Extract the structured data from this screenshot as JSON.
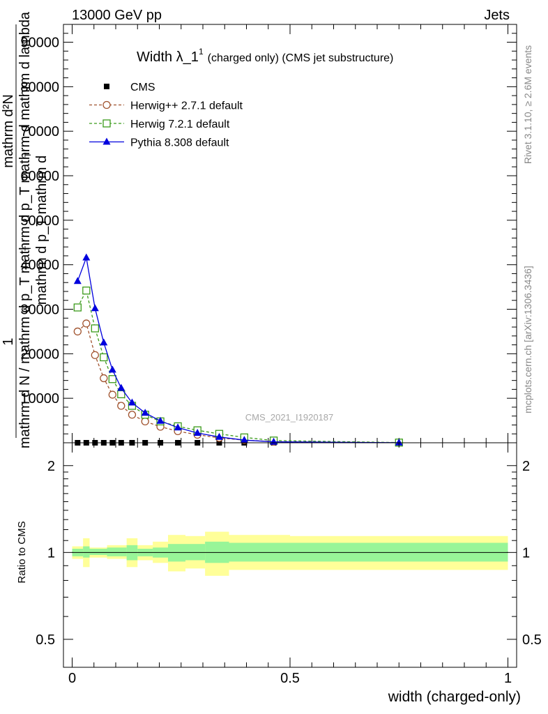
{
  "header": {
    "left": "13000 GeV pp",
    "right": "Jets"
  },
  "title": {
    "main": "Width λ_1",
    "sup": "1",
    "rest": "(charged only) (CMS jet substructure)"
  },
  "watermark": "CMS_2021_I1920187",
  "side_text": {
    "rivet": "Rivet 3.1.10, ≥ 2.6M events",
    "mcplots": "mcplots.cern.ch [arXiv:1306.3436]"
  },
  "y_label_main": {
    "line1": "1",
    "line2": "mathrm d N / mathrm d p_T mathrm d p_T mathrm d mathrm d lambda",
    "numer": "mathrm d²N",
    "denom_a": "mathrm d p_T mathrm d",
    "sub_a": "T",
    "sub_b": "T"
  },
  "y_label_ratio": "Ratio to CMS",
  "x_label": "width (charged-only)",
  "legend": [
    {
      "label": "CMS",
      "color": "#000000",
      "marker": "square-filled",
      "dash": false
    },
    {
      "label": "Herwig++ 2.7.1 default",
      "color": "#a0522d",
      "marker": "circle-open",
      "dash": true
    },
    {
      "label": "Herwig 7.2.1 default",
      "color": "#3a9a1a",
      "marker": "square-open",
      "dash": true
    },
    {
      "label": "Pythia 8.308 default",
      "color": "#0000dd",
      "marker": "triangle-filled",
      "dash": false
    }
  ],
  "chart_data": [
    {
      "type": "line",
      "panel": "main",
      "xlim": [
        -0.02,
        1.02
      ],
      "ylim": [
        0,
        94000
      ],
      "y_ticks": [
        10000,
        20000,
        30000,
        40000,
        50000,
        60000,
        70000,
        80000,
        90000
      ],
      "y_tick_labels": [
        "10000",
        "20000",
        "30000",
        "40000",
        "50000",
        "60000",
        "70000",
        "80000",
        "90000"
      ],
      "x_ticks": [
        0,
        0.5,
        1
      ],
      "x_tick_labels": [
        "0",
        "0.5",
        "1"
      ],
      "x": [
        0.0125,
        0.0325,
        0.0525,
        0.0725,
        0.0925,
        0.1125,
        0.1375,
        0.1675,
        0.2025,
        0.2425,
        0.2875,
        0.3375,
        0.395,
        0.4625,
        0.75
      ],
      "series": [
        {
          "name": "CMS",
          "values": [
            0,
            0,
            0,
            0,
            0,
            0,
            0,
            0,
            0,
            0,
            0,
            0,
            0,
            0,
            0
          ]
        },
        {
          "name": "Herwig++ 2.7.1 default",
          "values": [
            25000,
            26800,
            19700,
            14500,
            10800,
            8300,
            6300,
            4800,
            3600,
            2600,
            1800,
            1100,
            600,
            250,
            20
          ]
        },
        {
          "name": "Herwig 7.2.1 default",
          "values": [
            30400,
            34200,
            25700,
            19200,
            14300,
            10900,
            8300,
            6300,
            4800,
            3700,
            2800,
            2000,
            1200,
            500,
            40
          ]
        },
        {
          "name": "Pythia 8.308 default",
          "values": [
            36300,
            41600,
            30200,
            22500,
            16400,
            12300,
            9000,
            6700,
            4900,
            3400,
            2200,
            1300,
            600,
            200,
            20
          ]
        }
      ]
    },
    {
      "type": "area",
      "panel": "ratio",
      "xlim": [
        -0.02,
        1.02
      ],
      "ylim": [
        0.4,
        2.4
      ],
      "y_scale": "log",
      "y_ticks": [
        0.5,
        1,
        2
      ],
      "y_tick_labels": [
        "0.5",
        "1",
        "2"
      ],
      "reference": 1,
      "bins": [
        {
          "x0": 0.0,
          "x1": 0.025,
          "stat_lo": 0.97,
          "stat_hi": 1.03,
          "tot_lo": 0.95,
          "tot_hi": 1.05
        },
        {
          "x0": 0.025,
          "x1": 0.04,
          "stat_lo": 0.96,
          "stat_hi": 1.05,
          "tot_lo": 0.89,
          "tot_hi": 1.12
        },
        {
          "x0": 0.04,
          "x1": 0.08,
          "stat_lo": 0.98,
          "stat_hi": 1.03,
          "tot_lo": 0.96,
          "tot_hi": 1.04
        },
        {
          "x0": 0.08,
          "x1": 0.125,
          "stat_lo": 0.97,
          "stat_hi": 1.04,
          "tot_lo": 0.95,
          "tot_hi": 1.06
        },
        {
          "x0": 0.125,
          "x1": 0.15,
          "stat_lo": 0.94,
          "stat_hi": 1.06,
          "tot_lo": 0.89,
          "tot_hi": 1.12
        },
        {
          "x0": 0.15,
          "x1": 0.185,
          "stat_lo": 0.97,
          "stat_hi": 1.03,
          "tot_lo": 0.94,
          "tot_hi": 1.06
        },
        {
          "x0": 0.185,
          "x1": 0.22,
          "stat_lo": 0.96,
          "stat_hi": 1.04,
          "tot_lo": 0.92,
          "tot_hi": 1.09
        },
        {
          "x0": 0.22,
          "x1": 0.26,
          "stat_lo": 0.93,
          "stat_hi": 1.07,
          "tot_lo": 0.86,
          "tot_hi": 1.15
        },
        {
          "x0": 0.26,
          "x1": 0.305,
          "stat_lo": 0.94,
          "stat_hi": 1.07,
          "tot_lo": 0.88,
          "tot_hi": 1.14
        },
        {
          "x0": 0.305,
          "x1": 0.36,
          "stat_lo": 0.92,
          "stat_hi": 1.09,
          "tot_lo": 0.83,
          "tot_hi": 1.18
        },
        {
          "x0": 0.36,
          "x1": 0.5,
          "stat_lo": 0.93,
          "stat_hi": 1.08,
          "tot_lo": 0.87,
          "tot_hi": 1.15
        },
        {
          "x0": 0.5,
          "x1": 1.0,
          "stat_lo": 0.93,
          "stat_hi": 1.08,
          "tot_lo": 0.87,
          "tot_hi": 1.14
        }
      ]
    }
  ]
}
